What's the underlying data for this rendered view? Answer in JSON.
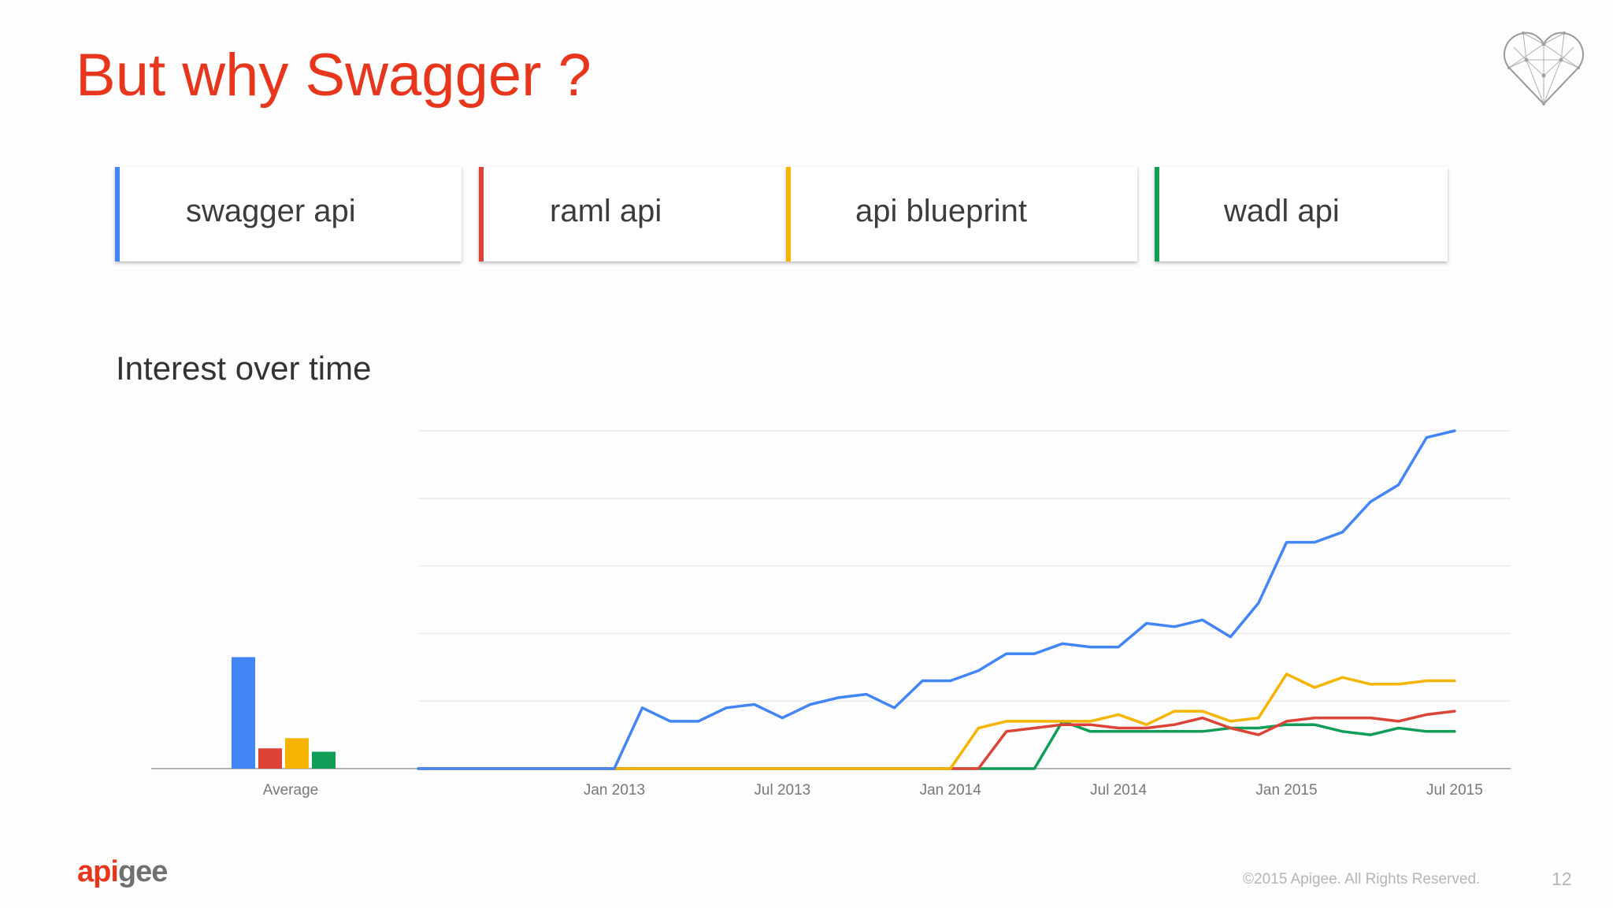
{
  "slide": {
    "title": "But why Swagger ?",
    "section_heading": "Interest over time",
    "logo_part1": "api",
    "logo_part2": "gee",
    "copyright": "©2015 Apigee. All Rights Reserved.",
    "page_number": "12"
  },
  "colors": {
    "title": "#e8361c",
    "swagger": "#4285f4",
    "raml": "#db4437",
    "blueprint": "#f4b400",
    "wadl": "#0f9d58"
  },
  "terms": [
    {
      "label": "swagger api",
      "color": "#4285f4"
    },
    {
      "label": "raml api",
      "color": "#db4437"
    },
    {
      "label": "api blueprint",
      "color": "#f4b400"
    },
    {
      "label": "wadl api",
      "color": "#0f9d58"
    }
  ],
  "chart_data": {
    "type": "line",
    "title": "Interest over time",
    "x_unit": "month",
    "x_start": "2012-06",
    "x_end": "2015-09",
    "x_ticks": [
      "Jan 2013",
      "Jul 2013",
      "Jan 2014",
      "Jul 2014",
      "Jan 2015",
      "Jul 2015"
    ],
    "ylim": [
      0,
      100
    ],
    "grid": true,
    "average_label": "Average",
    "average_values": [
      33,
      6,
      9,
      5
    ],
    "series": [
      {
        "name": "swagger api",
        "color": "#4285f4",
        "values": [
          0,
          0,
          0,
          0,
          0,
          0,
          0,
          0,
          18,
          14,
          14,
          18,
          19,
          15,
          19,
          21,
          22,
          18,
          26,
          26,
          29,
          34,
          34,
          37,
          36,
          36,
          43,
          42,
          44,
          39,
          49,
          67,
          67,
          70,
          79,
          84,
          98,
          100
        ]
      },
      {
        "name": "raml api",
        "color": "#db4437",
        "values": [
          0,
          0,
          0,
          0,
          0,
          0,
          0,
          0,
          0,
          0,
          0,
          0,
          0,
          0,
          0,
          0,
          0,
          0,
          0,
          0,
          0,
          11,
          12,
          13,
          13,
          12,
          12,
          13,
          15,
          12,
          10,
          14,
          15,
          15,
          15,
          14,
          16,
          17
        ]
      },
      {
        "name": "api blueprint",
        "color": "#f4b400",
        "values": [
          0,
          0,
          0,
          0,
          0,
          0,
          0,
          0,
          0,
          0,
          0,
          0,
          0,
          0,
          0,
          0,
          0,
          0,
          0,
          0,
          12,
          14,
          14,
          14,
          14,
          16,
          13,
          17,
          17,
          14,
          15,
          28,
          24,
          27,
          25,
          25,
          26,
          26
        ]
      },
      {
        "name": "wadl api",
        "color": "#0f9d58",
        "values": [
          0,
          0,
          0,
          0,
          0,
          0,
          0,
          0,
          0,
          0,
          0,
          0,
          0,
          0,
          0,
          0,
          0,
          0,
          0,
          0,
          0,
          0,
          0,
          14,
          11,
          11,
          11,
          11,
          11,
          12,
          12,
          13,
          13,
          11,
          10,
          12,
          11,
          11
        ]
      }
    ]
  }
}
